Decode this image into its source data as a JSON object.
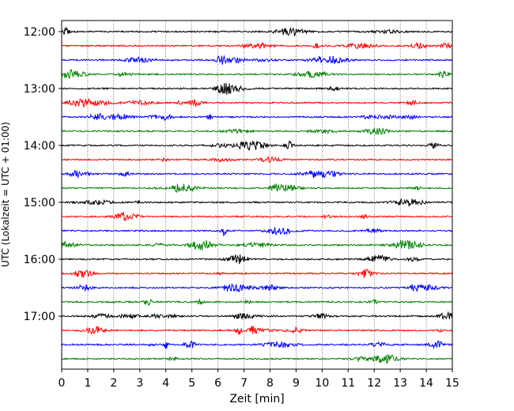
{
  "chart_data": {
    "type": "line",
    "title": "",
    "xlabel": "Zeit  [min]",
    "ylabel": "UTC (Lokalzeit = UTC + 01:00)",
    "xlim": [
      0,
      15
    ],
    "xticks": [
      0,
      1,
      2,
      3,
      4,
      5,
      6,
      7,
      8,
      9,
      10,
      11,
      12,
      13,
      14,
      15
    ],
    "xtick_labels": [
      "0",
      "1",
      "2",
      "3",
      "4",
      "5",
      "6",
      "7",
      "8",
      "9",
      "10",
      "11",
      "12",
      "13",
      "14",
      "15"
    ],
    "yticks": [
      "12:00",
      "13:00",
      "14:00",
      "15:00",
      "16:00",
      "17:00"
    ],
    "x_grid": "dotted",
    "trace_colors": [
      "#000000",
      "#ff0000",
      "#0000ff",
      "#008000"
    ],
    "trace_start": "12:00",
    "trace_interval_min": 15,
    "trace_count": 24
  }
}
